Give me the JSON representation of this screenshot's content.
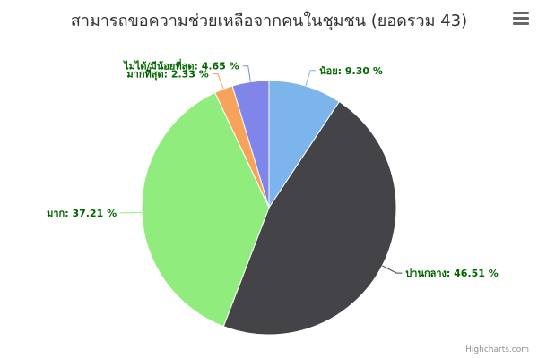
{
  "title": "สามารถขอความช่วยเหลือจากคนในชุมชน (ยอดรวม 43)",
  "credits": "Highcharts.com",
  "menu_icon": "hamburger-menu-icon",
  "chart_data": {
    "type": "pie",
    "title": "สามารถขอความช่วยเหลือจากคนในชุมชน (ยอดรวม 43)",
    "legend": "none",
    "slices": [
      {
        "name": "น้อย",
        "value": 9.3,
        "label": "น้อย: 9.30 %",
        "color": "#7cb5ec"
      },
      {
        "name": "ปานกลาง",
        "value": 46.51,
        "label": "ปานกลาง: 46.51 %",
        "color": "#434348"
      },
      {
        "name": "มาก",
        "value": 37.21,
        "label": "มาก: 37.21 %",
        "color": "#90ed7d"
      },
      {
        "name": "มากที่สุด",
        "value": 2.33,
        "label": "มากที่สุด: 2.33 %",
        "color": "#f7a35c"
      },
      {
        "name": "ไม่ได้/มีน้อยที่สุด",
        "value": 4.65,
        "label": "ไม่ได้/มีน้อยที่สุด: 4.65 %",
        "color": "#8085e9"
      }
    ]
  }
}
